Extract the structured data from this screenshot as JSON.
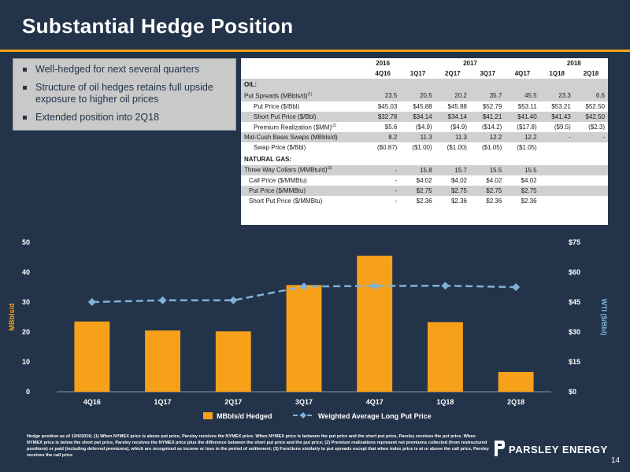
{
  "header": {
    "title": "Substantial Hedge Position"
  },
  "bullets": [
    "Well-hedged for next several quarters",
    "Structure of oil hedges retains full upside exposure to higher oil prices",
    "Extended position into 2Q18"
  ],
  "hedge_table": {
    "years": [
      "2016",
      "2017",
      "2018"
    ],
    "quarters": [
      "4Q16",
      "1Q17",
      "2Q17",
      "3Q17",
      "4Q17",
      "1Q18",
      "2Q18"
    ],
    "oil_label": "OIL:",
    "gas_label": "NATURAL GAS:",
    "rows": [
      {
        "label": "Put Spreads (MBbls/d)",
        "sup": "(1)",
        "values": [
          "23.5",
          "20.5",
          "20.2",
          "35.7",
          "45.5",
          "23.3",
          "6.6"
        ]
      },
      {
        "label": "Put Price ($/Bbl)",
        "values": [
          "$45.03",
          "$45.88",
          "$45.88",
          "$52.79",
          "$53.11",
          "$53.21",
          "$52.50"
        ]
      },
      {
        "label": "Short Put Price ($/Bbl)",
        "values": [
          "$32.78",
          "$34.14",
          "$34.14",
          "$41.21",
          "$41.40",
          "$41.43",
          "$42.50"
        ]
      },
      {
        "label": "Premium Realization ($MM)",
        "sup": "(2)",
        "values": [
          "$5.6",
          "($4.9)",
          "($4.9)",
          "($14.2)",
          "($17.8)",
          "($9.5)",
          "($2.3)"
        ]
      },
      {
        "label": "Mid-Cush Basis Swaps (MBbls/d)",
        "values": [
          "8.2",
          "11.3",
          "11.3",
          "12.2",
          "12.2",
          "-",
          "-"
        ]
      },
      {
        "label": "Swap Price ($/Bbl)",
        "values": [
          "($0.87)",
          "($1.00)",
          "($1.00)",
          "($1.05)",
          "($1.05)",
          "",
          ""
        ]
      },
      {
        "label": "Three Way Collars (MMBtu/d)",
        "sup": "(3)",
        "values": [
          "-",
          "15.8",
          "15.7",
          "15.5",
          "15.5",
          "",
          ""
        ]
      },
      {
        "label": "Call Price ($/MMBtu)",
        "values": [
          "-",
          "$4.02",
          "$4.02",
          "$4.02",
          "$4.02",
          "",
          ""
        ]
      },
      {
        "label": "Put Price ($/MMBtu)",
        "values": [
          "-",
          "$2.75",
          "$2.75",
          "$2.75",
          "$2.75",
          "",
          ""
        ]
      },
      {
        "label": "Short Put Price ($/MMBtu)",
        "values": [
          "-",
          "$2.36",
          "$2.36",
          "$2.36",
          "$2.36",
          "",
          ""
        ]
      }
    ]
  },
  "chart_data": {
    "type": "bar",
    "categories": [
      "4Q16",
      "1Q17",
      "2Q17",
      "3Q17",
      "4Q17",
      "1Q18",
      "2Q18"
    ],
    "series": [
      {
        "name": "MBbls/d Hedged",
        "type": "bar",
        "axis": "left",
        "values": [
          23.5,
          20.5,
          20.2,
          35.7,
          45.5,
          23.3,
          6.6
        ]
      },
      {
        "name": "Weighted Average Long Put Price",
        "type": "line",
        "axis": "right",
        "values": [
          45.03,
          45.88,
          45.88,
          52.79,
          53.11,
          53.21,
          52.5
        ]
      }
    ],
    "ylabel": "MBbls/d",
    "ylabel_right": "WTI ($/Bbl)",
    "ylim": [
      0,
      50
    ],
    "ylim_right": [
      0,
      75
    ],
    "yticks": [
      "0",
      "10",
      "20",
      "30",
      "40",
      "50"
    ],
    "yticks_right": [
      "$0",
      "$15",
      "$30",
      "$45",
      "$60",
      "$75"
    ],
    "colors": {
      "bar": "#f7a11a",
      "line": "#7fb2d8"
    },
    "legend_position": "bottom"
  },
  "footnote": "Hedge position as of 12/6/2016; (1) When NYMEX price is above put price, Parsley receives the NYMEX price. When NYMEX price is between the put price and the short put price, Parsley receives the put price. When NYMEX price is below the short put price, Parsley receives the NYMEX price plus the difference between the short put price and the put price; (2) Premium realizations represent net premiums collected (from restructured positions) or paid (including deferred premiums), which are recognized as income or loss in the period of settlement; (3) Functions similarly to put spreads except that when index price is at or above the call price, Parsley receives the call price",
  "brand": {
    "logo_text": "PARSLEY ENERGY",
    "page_number": "14"
  }
}
